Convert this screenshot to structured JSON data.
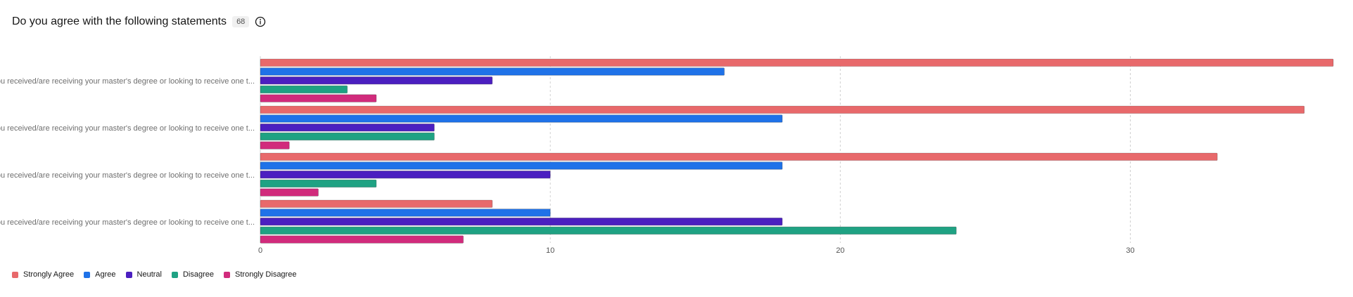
{
  "header": {
    "title": "Do you agree with the following statements",
    "count": "68"
  },
  "colors": [
    "#e8696b",
    "#1f72e8",
    "#4b1fc0",
    "#1fa283",
    "#d12b7c"
  ],
  "chart_data": {
    "type": "bar",
    "orientation": "horizontal",
    "categories": [
      "You received/are receiving your master's degree or looking to receive one t...",
      "You received/are receiving your master's degree or looking to receive one t...",
      "You received/are receiving your master's degree or looking to receive one t...",
      "You received/are receiving your master's degree or looking to receive one t..."
    ],
    "series": [
      {
        "name": "Strongly Agree",
        "values": [
          37,
          36,
          33,
          8
        ]
      },
      {
        "name": "Agree",
        "values": [
          16,
          18,
          18,
          10
        ]
      },
      {
        "name": "Neutral",
        "values": [
          8,
          6,
          10,
          18
        ]
      },
      {
        "name": "Disagree",
        "values": [
          3,
          6,
          4,
          24
        ]
      },
      {
        "name": "Strongly Disagree",
        "values": [
          4,
          1,
          2,
          7
        ]
      }
    ],
    "xticks": [
      0,
      10,
      20,
      30
    ],
    "xlim": [
      0,
      37
    ],
    "grid": true,
    "legend": "bottom-left"
  }
}
